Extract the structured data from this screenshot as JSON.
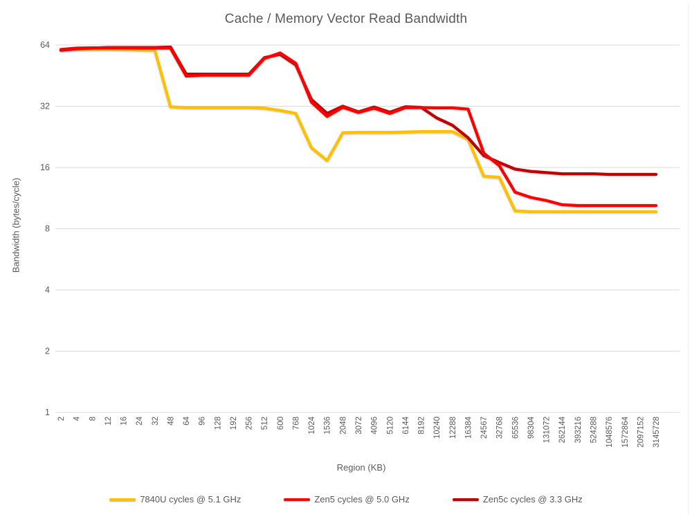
{
  "colors": {
    "background": "#FFFFFF",
    "gridline": "#D9D9D9",
    "title_text": "#595959",
    "axis_text": "#595959",
    "series_yellow": "#FFC000",
    "series_red": "#FF0000",
    "series_darkred": "#C00000"
  },
  "chart_data": {
    "type": "line",
    "title": "Cache / Memory Vector Read Bandwidth",
    "xlabel": "Region (KB)",
    "ylabel": "Bandwidth (bytes/cycle)",
    "y_scale": "log2",
    "ylim": [
      1,
      64
    ],
    "y_ticks": [
      64,
      32,
      16,
      8,
      4,
      2,
      1
    ],
    "grid": true,
    "legend_position": "bottom",
    "categories": [
      "2",
      "4",
      "8",
      "12",
      "16",
      "24",
      "32",
      "48",
      "64",
      "96",
      "128",
      "192",
      "256",
      "512",
      "600",
      "768",
      "1024",
      "1536",
      "2048",
      "3072",
      "4096",
      "5120",
      "6144",
      "8192",
      "10240",
      "12288",
      "16384",
      "24567",
      "32768",
      "65536",
      "98304",
      "131072",
      "262144",
      "393216",
      "524288",
      "1048576",
      "1572864",
      "2097152",
      "3145728"
    ],
    "series": [
      {
        "name": "7840U cycles @ 5.1 GHz",
        "color": "#FFC000",
        "values": [
          60.5,
          60.8,
          61,
          61,
          60.8,
          60.5,
          60.3,
          31.8,
          31.5,
          31.5,
          31.5,
          31.5,
          31.5,
          31.3,
          30.5,
          29.5,
          20,
          17.3,
          23.7,
          23.8,
          23.8,
          23.8,
          23.9,
          24,
          24,
          24,
          22,
          14.5,
          14.3,
          9.8,
          9.7,
          9.7,
          9.7,
          9.7,
          9.7,
          9.7,
          9.7,
          9.7,
          9.7
        ]
      },
      {
        "name": "Zen5 cycles @ 5.0 GHz",
        "color": "#FF0000",
        "values": [
          60.8,
          61.8,
          62,
          62,
          62,
          61.8,
          61.8,
          61.8,
          45,
          45.5,
          45.5,
          45.5,
          45.5,
          55,
          58.5,
          52,
          33.5,
          28.5,
          31.6,
          29.8,
          31.3,
          29.5,
          31.5,
          31.5,
          31.4,
          31.4,
          31,
          18.8,
          16.3,
          12.1,
          11.4,
          11,
          10.5,
          10.4,
          10.4,
          10.4,
          10.4,
          10.4,
          10.4
        ]
      },
      {
        "name": "Zen5c cycles @ 3.3 GHz",
        "color": "#C00000",
        "values": [
          60.3,
          61.3,
          61.8,
          62.2,
          62.2,
          62.2,
          62.2,
          62.5,
          46,
          46,
          46,
          46,
          46,
          55.5,
          57.5,
          51,
          34.5,
          29.5,
          32,
          30,
          31.7,
          29.9,
          31.8,
          31.6,
          28,
          25.8,
          22.4,
          18.3,
          16.9,
          15.7,
          15.3,
          15.1,
          14.9,
          14.9,
          14.9,
          14.8,
          14.8,
          14.8,
          14.8
        ]
      }
    ]
  }
}
